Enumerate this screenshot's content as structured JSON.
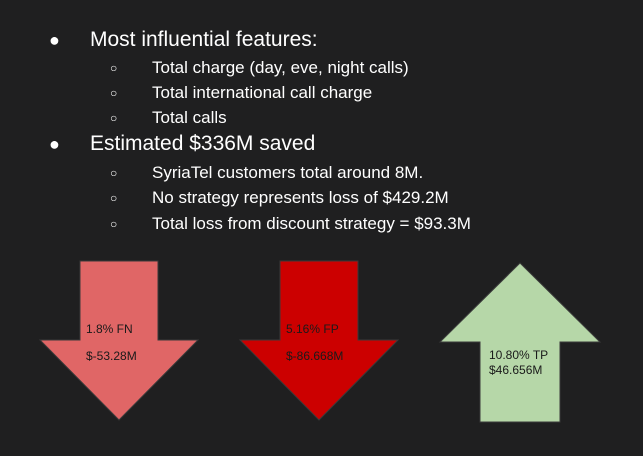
{
  "bullets": {
    "b1": {
      "text": "Most influential features:",
      "sub": [
        "Total charge (day, eve, night calls)",
        "Total international call charge",
        "Total calls"
      ]
    },
    "b2": {
      "text": "Estimated $336M saved",
      "sub": [
        "SyriaTel customers total around 8M.",
        "No strategy represents loss of $429.2M",
        "Total loss from discount strategy = $93.3M"
      ]
    },
    "bullet_glyph": "●",
    "sub_glyph": "○"
  },
  "arrows": {
    "fn": {
      "direction": "down",
      "color": "#e06666",
      "rate": "1.8% FN",
      "amount": "$-53.28M"
    },
    "fp": {
      "direction": "down",
      "color": "#cc0000",
      "rate": "5.16% FP",
      "amount": "$-86.668M"
    },
    "tp": {
      "direction": "up",
      "color": "#b6d7a8",
      "rate": "10.80% TP",
      "amount": "$46.656M"
    }
  }
}
